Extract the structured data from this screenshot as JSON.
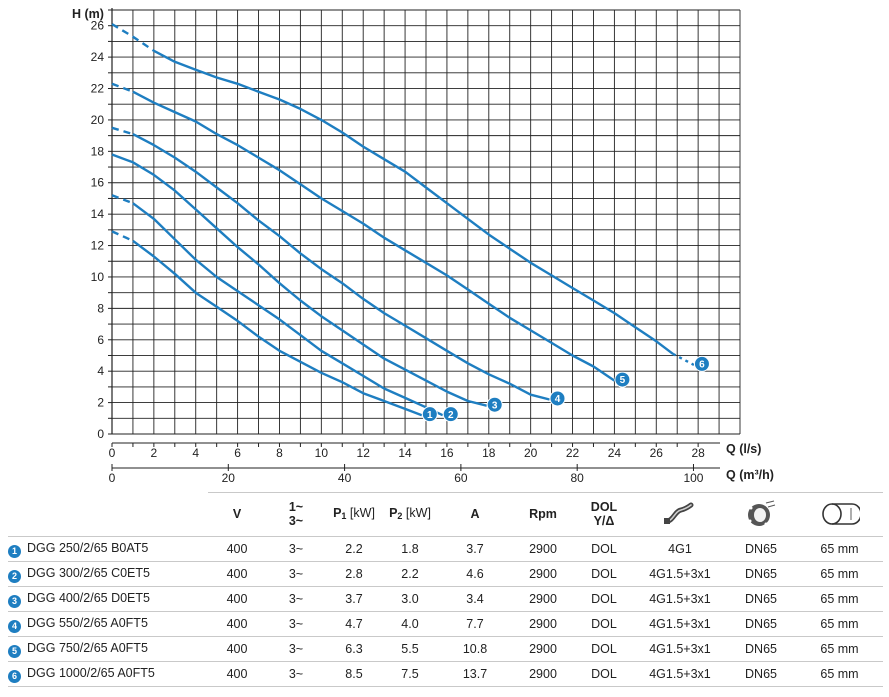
{
  "chart_data": {
    "type": "line",
    "ylabel": "H (m)",
    "xlabel": "Q (l/s)",
    "xlabel2": "Q (m³/h)",
    "xlim": [
      0,
      30
    ],
    "ylim": [
      0,
      27
    ],
    "x_ticks": [
      "0",
      "2",
      "4",
      "6",
      "8",
      "10",
      "12",
      "14",
      "16",
      "18",
      "20",
      "22",
      "24",
      "26",
      "28"
    ],
    "y_ticks": [
      "0",
      "2",
      "4",
      "6",
      "8",
      "10",
      "12",
      "14",
      "16",
      "18",
      "20",
      "22",
      "24",
      "26"
    ],
    "x2_ticks": [
      {
        "label": "0",
        "value": 0
      },
      {
        "label": "20",
        "value": 20
      },
      {
        "label": "40",
        "value": 40
      },
      {
        "label": "60",
        "value": 60
      },
      {
        "label": "80",
        "value": 80
      },
      {
        "label": "100",
        "value": 100
      }
    ],
    "x2_ratio_m3h_per_ls": 3.6,
    "grid": true,
    "color": "#1e7ec1",
    "series": [
      {
        "badge": "1",
        "x": [
          0,
          1,
          2,
          3,
          4,
          5,
          6,
          7,
          8,
          9,
          10,
          11,
          12,
          13,
          14,
          14.8
        ],
        "y": [
          12.9,
          12.3,
          11.3,
          10.2,
          9.0,
          8.1,
          7.2,
          6.2,
          5.3,
          4.6,
          3.9,
          3.3,
          2.6,
          2.1,
          1.6,
          1.2
        ],
        "solid_from": 1
      },
      {
        "badge": "2",
        "x": [
          0,
          1,
          2,
          3,
          4,
          5,
          6,
          7,
          8,
          9,
          10,
          11,
          12,
          13,
          14,
          15,
          15.8
        ],
        "y": [
          15.2,
          14.7,
          13.7,
          12.4,
          11.1,
          10.0,
          9.1,
          8.2,
          7.3,
          6.3,
          5.3,
          4.5,
          3.7,
          2.9,
          2.3,
          1.7,
          1.2
        ],
        "solid_from": 1
      },
      {
        "badge": "3",
        "x": [
          0,
          1,
          2,
          3,
          4,
          5,
          6,
          7,
          8,
          9,
          10,
          11,
          12,
          13,
          14,
          15,
          16,
          17,
          17.9
        ],
        "y": [
          17.8,
          17.3,
          16.5,
          15.5,
          14.3,
          13.1,
          11.9,
          10.8,
          9.6,
          8.5,
          7.5,
          6.6,
          5.7,
          4.8,
          4.1,
          3.4,
          2.7,
          2.1,
          1.8
        ],
        "solid_from": 0
      },
      {
        "badge": "4",
        "x": [
          0,
          1,
          2,
          3,
          4,
          5,
          6,
          7,
          8,
          9,
          10,
          11,
          12,
          13,
          14,
          15,
          16,
          17,
          18,
          19,
          20,
          20.9
        ],
        "y": [
          19.5,
          19.1,
          18.4,
          17.6,
          16.7,
          15.7,
          14.7,
          13.6,
          12.6,
          11.5,
          10.5,
          9.6,
          8.6,
          7.7,
          6.9,
          6.1,
          5.3,
          4.5,
          3.8,
          3.2,
          2.5,
          2.2
        ],
        "solid_from": 1
      },
      {
        "badge": "5",
        "x": [
          0,
          1,
          2,
          3,
          4,
          5,
          6,
          7,
          8,
          9,
          10,
          11,
          12,
          13,
          14,
          15,
          16,
          17,
          18,
          19,
          20,
          21,
          22,
          23,
          24
        ],
        "y": [
          22.3,
          21.8,
          21.1,
          20.5,
          19.9,
          19.1,
          18.4,
          17.6,
          16.8,
          15.9,
          15.0,
          14.2,
          13.4,
          12.5,
          11.7,
          10.9,
          10.1,
          9.2,
          8.3,
          7.4,
          6.6,
          5.8,
          5.0,
          4.3,
          3.4
        ],
        "solid_from": 1
      },
      {
        "badge": "6",
        "x": [
          0,
          1,
          2,
          3,
          4,
          5,
          6,
          7,
          8,
          9,
          10,
          11,
          12,
          13,
          14,
          15,
          16,
          17,
          18,
          19,
          20,
          21,
          22,
          23,
          24,
          25,
          26,
          26.8,
          27.8
        ],
        "y": [
          26.1,
          25.3,
          24.4,
          23.7,
          23.2,
          22.7,
          22.3,
          21.8,
          21.3,
          20.7,
          20.0,
          19.2,
          18.3,
          17.5,
          16.7,
          15.7,
          14.7,
          13.7,
          12.7,
          11.8,
          10.9,
          10.1,
          9.3,
          8.5,
          7.7,
          6.8,
          5.9,
          5.1,
          4.4
        ],
        "solid_from": 2,
        "solid_to": 27
      }
    ]
  },
  "table": {
    "headers": {
      "v": "V",
      "phase_top": "1~",
      "phase_bottom": "3~",
      "p1": "P",
      "p1_sub": "1",
      "p1_unit": "[kW]",
      "p2": "P",
      "p2_sub": "2",
      "p2_unit": "[kW]",
      "a": "A",
      "rpm": "Rpm",
      "dol_top": "DOL",
      "dol_bottom": "Y/Δ",
      "cable_icon": "cable-icon",
      "outlet_icon": "flange-outlet-icon",
      "passage_icon": "solids-passage-icon"
    },
    "rows": [
      {
        "badge": "1",
        "model": "DGG 250/2/65 B0AT5",
        "v": "400",
        "phase": "3~",
        "p1": "2.2",
        "p2": "1.8",
        "a": "3.7",
        "rpm": "2900",
        "start": "DOL",
        "cable": "4G1",
        "outlet": "DN65",
        "passage": "65 mm"
      },
      {
        "badge": "2",
        "model": "DGG 300/2/65 C0ET5",
        "v": "400",
        "phase": "3~",
        "p1": "2.8",
        "p2": "2.2",
        "a": "4.6",
        "rpm": "2900",
        "start": "DOL",
        "cable": "4G1.5+3x1",
        "outlet": "DN65",
        "passage": "65 mm"
      },
      {
        "badge": "3",
        "model": "DGG 400/2/65 D0ET5",
        "v": "400",
        "phase": "3~",
        "p1": "3.7",
        "p2": "3.0",
        "a": "3.4",
        "rpm": "2900",
        "start": "DOL",
        "cable": "4G1.5+3x1",
        "outlet": "DN65",
        "passage": "65 mm"
      },
      {
        "badge": "4",
        "model": "DGG 550/2/65 A0FT5",
        "v": "400",
        "phase": "3~",
        "p1": "4.7",
        "p2": "4.0",
        "a": "7.7",
        "rpm": "2900",
        "start": "DOL",
        "cable": "4G1.5+3x1",
        "outlet": "DN65",
        "passage": "65 mm"
      },
      {
        "badge": "5",
        "model": "DGG 750/2/65 A0FT5",
        "v": "400",
        "phase": "3~",
        "p1": "6.3",
        "p2": "5.5",
        "a": "10.8",
        "rpm": "2900",
        "start": "DOL",
        "cable": "4G1.5+3x1",
        "outlet": "DN65",
        "passage": "65 mm"
      },
      {
        "badge": "6",
        "model": "DGG 1000/2/65 A0FT5",
        "v": "400",
        "phase": "3~",
        "p1": "8.5",
        "p2": "7.5",
        "a": "13.7",
        "rpm": "2900",
        "start": "DOL",
        "cable": "4G1.5+3x1",
        "outlet": "DN65",
        "passage": "65 mm"
      }
    ]
  }
}
